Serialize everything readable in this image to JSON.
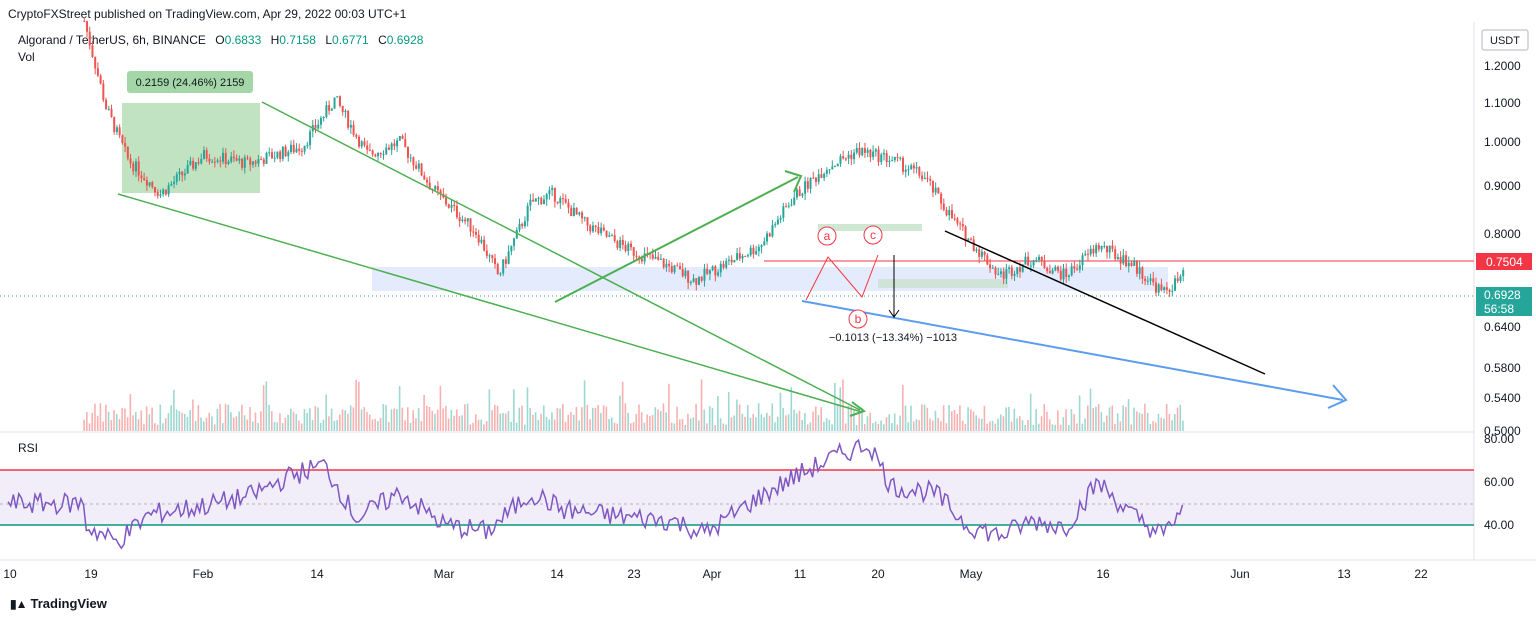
{
  "header": {
    "text": "CryptoFXStreet published on TradingView.com, Apr 29, 2022 00:03 UTC+1"
  },
  "legend": {
    "symbol": "Algorand / TetherUS, 6h, BINANCE",
    "o_label": "O",
    "o": "0.6833",
    "h_label": "H",
    "h": "0.7158",
    "l_label": "L",
    "l": "0.6771",
    "c_label": "C",
    "c": "0.6928",
    "vol": "Vol"
  },
  "rsi_panel": {
    "label": "RSI"
  },
  "footer": {
    "brand": "TradingView"
  },
  "colors": {
    "up": "#26a69a",
    "down": "#ef5350",
    "green_line": "#4caf50",
    "blue_line": "#5b9cf0",
    "red_line": "#f23645",
    "rsi_line": "#7e57c2",
    "price_badge": "#26a69a"
  },
  "chart_data": [
    {
      "type": "candlestick",
      "currency": "USDT",
      "y_ticks": [
        "1.2000",
        "1.1000",
        "1.0000",
        "0.9000",
        "0.8000",
        "0.6400",
        "0.5800",
        "0.5400",
        "0.5000"
      ],
      "x_ticks": [
        "10",
        "19",
        "Feb",
        "14",
        "Mar",
        "14",
        "23",
        "Apr",
        "11",
        "20",
        "May",
        "16",
        "Jun",
        "13",
        "22"
      ],
      "price_path": [
        {
          "date": "2022-01-17",
          "price": 1.28
        },
        {
          "date": "2022-01-19",
          "price": 1.08
        },
        {
          "date": "2022-01-21",
          "price": 0.96
        },
        {
          "date": "2022-01-24",
          "price": 0.88
        },
        {
          "date": "2022-01-28",
          "price": 0.97
        },
        {
          "date": "2022-02-01",
          "price": 0.95
        },
        {
          "date": "2022-02-06",
          "price": 0.99
        },
        {
          "date": "2022-02-09",
          "price": 1.1
        },
        {
          "date": "2022-02-12",
          "price": 0.97
        },
        {
          "date": "2022-02-15",
          "price": 1.0
        },
        {
          "date": "2022-02-18",
          "price": 0.89
        },
        {
          "date": "2022-02-22",
          "price": 0.79
        },
        {
          "date": "2022-02-24",
          "price": 0.69
        },
        {
          "date": "2022-02-27",
          "price": 0.86
        },
        {
          "date": "2022-03-01",
          "price": 0.88
        },
        {
          "date": "2022-03-04",
          "price": 0.81
        },
        {
          "date": "2022-03-08",
          "price": 0.75
        },
        {
          "date": "2022-03-11",
          "price": 0.72
        },
        {
          "date": "2022-03-14",
          "price": 0.68
        },
        {
          "date": "2022-03-17",
          "price": 0.72
        },
        {
          "date": "2022-03-20",
          "price": 0.76
        },
        {
          "date": "2022-03-23",
          "price": 0.87
        },
        {
          "date": "2022-03-26",
          "price": 0.94
        },
        {
          "date": "2022-03-29",
          "price": 0.98
        },
        {
          "date": "2022-04-01",
          "price": 0.96
        },
        {
          "date": "2022-04-04",
          "price": 0.92
        },
        {
          "date": "2022-04-07",
          "price": 0.81
        },
        {
          "date": "2022-04-11",
          "price": 0.69
        },
        {
          "date": "2022-04-14",
          "price": 0.73
        },
        {
          "date": "2022-04-17",
          "price": 0.69
        },
        {
          "date": "2022-04-20",
          "price": 0.76
        },
        {
          "date": "2022-04-23",
          "price": 0.72
        },
        {
          "date": "2022-04-26",
          "price": 0.65
        },
        {
          "date": "2022-04-28",
          "price": 0.6928
        }
      ],
      "last_price": "0.6928",
      "countdown": "56:58",
      "level_label": "0.7504",
      "annotations": {
        "measure_up": "0.2159 (24.46%) 2159",
        "measure_down": "−0.1013 (−13.34%) −1013",
        "wave_a": "a",
        "wave_b": "b",
        "wave_c": "c"
      }
    },
    {
      "type": "line",
      "title": "RSI",
      "y_ticks": [
        "80.00",
        "60.00",
        "40.00"
      ],
      "overbought": 65,
      "oversold": 40,
      "rsi_path": [
        {
          "date": "2022-01-17",
          "rsi": 40
        },
        {
          "date": "2022-01-20",
          "rsi": 32
        },
        {
          "date": "2022-01-23",
          "rsi": 45
        },
        {
          "date": "2022-01-27",
          "rsi": 48
        },
        {
          "date": "2022-02-01",
          "rsi": 53
        },
        {
          "date": "2022-02-05",
          "rsi": 63
        },
        {
          "date": "2022-02-08",
          "rsi": 68
        },
        {
          "date": "2022-02-11",
          "rsi": 43
        },
        {
          "date": "2022-02-15",
          "rsi": 55
        },
        {
          "date": "2022-02-19",
          "rsi": 40
        },
        {
          "date": "2022-02-23",
          "rsi": 37
        },
        {
          "date": "2022-02-27",
          "rsi": 55
        },
        {
          "date": "2022-03-02",
          "rsi": 47
        },
        {
          "date": "2022-03-07",
          "rsi": 44
        },
        {
          "date": "2022-03-12",
          "rsi": 42
        },
        {
          "date": "2022-03-15",
          "rsi": 36
        },
        {
          "date": "2022-03-19",
          "rsi": 50
        },
        {
          "date": "2022-03-23",
          "rsi": 62
        },
        {
          "date": "2022-03-27",
          "rsi": 72
        },
        {
          "date": "2022-03-30",
          "rsi": 78
        },
        {
          "date": "2022-04-01",
          "rsi": 58
        },
        {
          "date": "2022-04-05",
          "rsi": 55
        },
        {
          "date": "2022-04-08",
          "rsi": 40
        },
        {
          "date": "2022-04-11",
          "rsi": 35
        },
        {
          "date": "2022-04-14",
          "rsi": 42
        },
        {
          "date": "2022-04-17",
          "rsi": 39
        },
        {
          "date": "2022-04-20",
          "rsi": 60
        },
        {
          "date": "2022-04-23",
          "rsi": 45
        },
        {
          "date": "2022-04-26",
          "rsi": 35
        },
        {
          "date": "2022-04-28",
          "rsi": 50
        }
      ]
    }
  ]
}
